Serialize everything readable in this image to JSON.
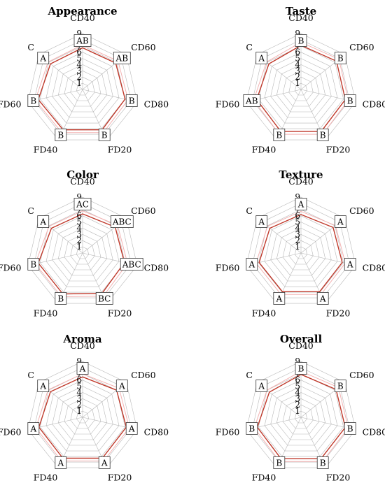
{
  "chart_data": [
    {
      "type": "radar",
      "title": "Appearance",
      "axes": [
        "CD40",
        "CD60",
        "CD80",
        "FD20",
        "FD40",
        "FD60",
        "C"
      ],
      "ticks": [
        "1",
        "2",
        "3",
        "4",
        "5",
        "6",
        "7",
        "8",
        "9"
      ],
      "range": [
        0,
        9
      ],
      "values": [
        6.7,
        6.8,
        7.0,
        7.2,
        7.2,
        7.3,
        6.6
      ],
      "letters": [
        "AB",
        "AB",
        "B",
        "B",
        "B",
        "B",
        "A"
      ]
    },
    {
      "type": "radar",
      "title": "Taste",
      "axes": [
        "CD40",
        "CD60",
        "CD80",
        "FD20",
        "FD40",
        "FD60",
        "C"
      ],
      "ticks": [
        "1",
        "2",
        "3",
        "4",
        "5",
        "6",
        "7",
        "8",
        "9"
      ],
      "range": [
        0,
        9
      ],
      "values": [
        7.1,
        7.3,
        7.3,
        7.5,
        7.5,
        7.3,
        6.6
      ],
      "letters": [
        "B",
        "B",
        "B",
        "B",
        "B",
        "AB",
        "A"
      ]
    },
    {
      "type": "radar",
      "title": "Color",
      "axes": [
        "CD40",
        "CD60",
        "CD80",
        "FD20",
        "FD40",
        "FD60",
        "C"
      ],
      "ticks": [
        "1",
        "2",
        "3",
        "4",
        "5",
        "6",
        "7",
        "8",
        "9"
      ],
      "range": [
        0,
        9
      ],
      "values": [
        6.3,
        6.7,
        6.9,
        7.2,
        7.3,
        7.3,
        6.4
      ],
      "letters": [
        "AC",
        "ABC",
        "ABC",
        "BC",
        "B",
        "B",
        "A"
      ]
    },
    {
      "type": "radar",
      "title": "Texture",
      "axes": [
        "CD40",
        "CD60",
        "CD80",
        "FD20",
        "FD40",
        "FD60",
        "C"
      ],
      "ticks": [
        "1",
        "2",
        "3",
        "4",
        "5",
        "6",
        "7",
        "8",
        "9"
      ],
      "range": [
        0,
        9
      ],
      "values": [
        6.2,
        6.6,
        6.8,
        6.9,
        6.9,
        6.9,
        6.4
      ],
      "letters": [
        "A",
        "A",
        "A",
        "A",
        "A",
        "A",
        "A"
      ]
    },
    {
      "type": "radar",
      "title": "Aroma",
      "axes": [
        "CD40",
        "CD60",
        "CD80",
        "FD20",
        "FD40",
        "FD60",
        "C"
      ],
      "ticks": [
        "1",
        "2",
        "3",
        "4",
        "5",
        "6",
        "7",
        "8",
        "9"
      ],
      "range": [
        0,
        9
      ],
      "values": [
        6.5,
        7.0,
        7.2,
        7.3,
        7.3,
        7.2,
        6.6
      ],
      "letters": [
        "A",
        "A",
        "A",
        "A",
        "A",
        "A",
        "A"
      ]
    },
    {
      "type": "radar",
      "title": "Overall",
      "axes": [
        "CD40",
        "CD60",
        "CD80",
        "FD20",
        "FD40",
        "FD60",
        "C"
      ],
      "ticks": [
        "1",
        "2",
        "3",
        "4",
        "5",
        "6",
        "7",
        "8",
        "9"
      ],
      "range": [
        0,
        9
      ],
      "values": [
        6.9,
        7.2,
        7.3,
        7.4,
        7.4,
        7.2,
        6.5
      ],
      "letters": [
        "B",
        "B",
        "B",
        "B",
        "B",
        "B",
        "A"
      ]
    }
  ]
}
